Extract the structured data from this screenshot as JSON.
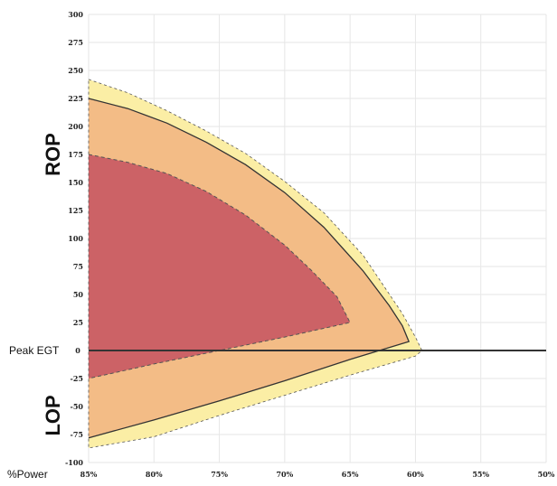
{
  "chart_data": {
    "type": "area",
    "title": "",
    "xlabel": "%Power",
    "ylabel": "",
    "x_ticks": [
      "85%",
      "80%",
      "75%",
      "70%",
      "65%",
      "60%",
      "55%",
      "50%"
    ],
    "x_values": [
      85,
      80,
      75,
      70,
      65,
      60,
      55,
      50
    ],
    "xlim": [
      85,
      50
    ],
    "y_ticks": [
      "300",
      "275",
      "250",
      "225",
      "200",
      "175",
      "150",
      "125",
      "100",
      "75",
      "50",
      "25",
      "0",
      "-25",
      "-50",
      "-75",
      "-100"
    ],
    "y_tick_values": [
      300,
      275,
      250,
      225,
      200,
      175,
      150,
      125,
      100,
      75,
      50,
      25,
      0,
      -25,
      -50,
      -75,
      -100
    ],
    "ylim": [
      -100,
      300
    ],
    "zero_label": "Peak EGT",
    "region_labels": {
      "upper": "ROP",
      "lower": "LOP"
    },
    "grid": true,
    "colors": {
      "outer_band": "#fbeea5",
      "middle_band": "#f3bc86",
      "inner_region": "#cc6266",
      "boundary_line": "#333333",
      "dashed_line": "#555555",
      "peak_line": "#333333"
    },
    "series": [
      {
        "x": [
          85,
          82,
          79,
          76,
          73,
          70,
          67,
          64,
          61,
          60,
          59.5,
          60,
          65,
          70,
          75,
          80,
          85
        ],
        "y": [
          242,
          230,
          214,
          196,
          176,
          151,
          123,
          85,
          33,
          12,
          0,
          -5,
          -22,
          -40,
          -58,
          -77,
          -87
        ]
      },
      {
        "x": [
          85,
          82,
          79,
          76,
          73,
          70,
          67,
          64,
          62,
          61,
          60.5,
          65,
          70,
          75,
          80,
          85
        ],
        "y": [
          225,
          216,
          203,
          186,
          166,
          141,
          110,
          71,
          40,
          22,
          8,
          -8,
          -27,
          -45,
          -62,
          -78
        ]
      },
      {
        "x": [
          85,
          82,
          79,
          76,
          73,
          70,
          68,
          66,
          65,
          70,
          75,
          80,
          85
        ],
        "y": [
          175,
          168,
          158,
          142,
          121,
          94,
          72,
          48,
          25,
          12,
          0,
          -12,
          -25
        ]
      },
      {
        "x": [
          60,
          50
        ],
        "y": [
          0,
          0
        ]
      }
    ]
  }
}
